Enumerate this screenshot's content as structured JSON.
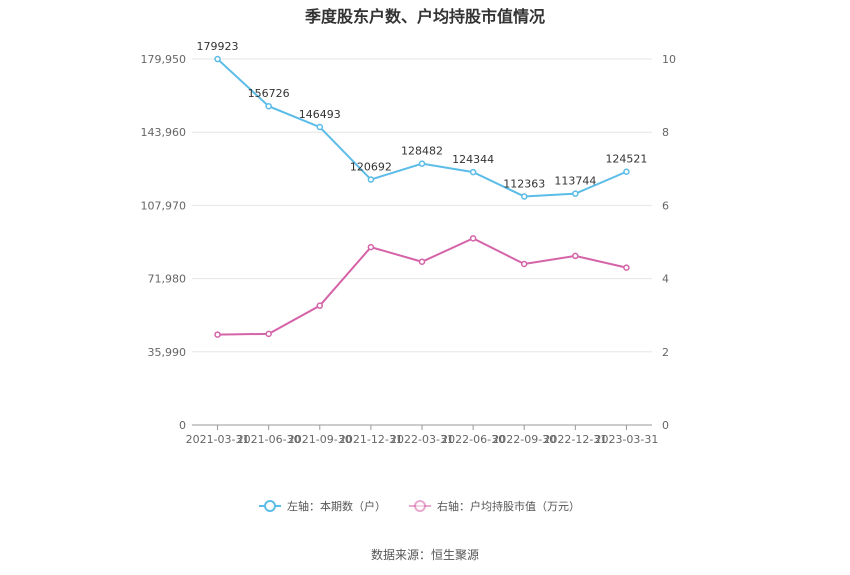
{
  "chart_data": {
    "type": "line",
    "title": "季度股东户数、户均持股市值情况",
    "categories": [
      "2021-03-31",
      "2021-06-30",
      "2021-09-30",
      "2021-12-31",
      "2022-03-31",
      "2022-06-30",
      "2022-09-30",
      "2022-12-31",
      "2023-03-31"
    ],
    "left_axis": {
      "ticks": [
        "0",
        "35,990",
        "71,980",
        "107,970",
        "143,960",
        "179,950"
      ],
      "range": [
        0,
        179950
      ]
    },
    "right_axis": {
      "ticks": [
        "0",
        "2",
        "4",
        "6",
        "8",
        "10"
      ],
      "range": [
        0,
        10
      ]
    },
    "series": [
      {
        "name": "左轴：本期数（户）",
        "axis": "left",
        "color": "#5bbce8",
        "labels_shown": true,
        "values": [
          179923,
          156726,
          146493,
          120692,
          128482,
          124344,
          112363,
          113744,
          124521
        ]
      },
      {
        "name": "右轴：户均持股市值（万元）",
        "axis": "right",
        "color": "#d563a8",
        "labels_shown": false,
        "values": [
          2.47,
          2.49,
          3.26,
          4.86,
          4.46,
          5.1,
          4.4,
          4.62,
          4.3
        ]
      }
    ],
    "grid": true,
    "legend_position": "bottom"
  },
  "source_text": "数据来源：恒生聚源"
}
